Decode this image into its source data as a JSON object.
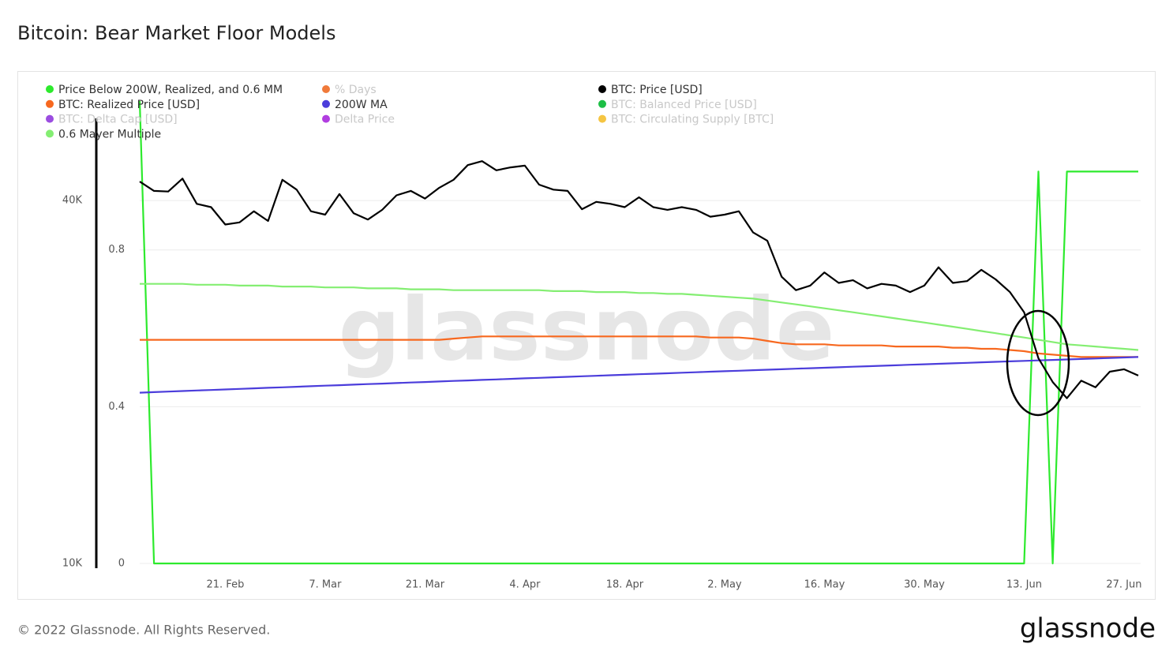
{
  "title": "Bitcoin: Bear Market Floor Models",
  "footer": "© 2022 Glassnode. All Rights Reserved.",
  "logo": "glassnode",
  "watermark": "glassnode",
  "chart_data": {
    "type": "line",
    "ylog": true,
    "ylim": [
      10000,
      58500
    ],
    "yticks": [
      {
        "value": 10000,
        "label": "10K"
      },
      {
        "value": 40000,
        "label": "40K"
      }
    ],
    "y2lim": [
      0,
      1.18
    ],
    "y2ticks": [
      0,
      0.4,
      0.8
    ],
    "grid": true,
    "categories": [
      null,
      null,
      null,
      null,
      null,
      null,
      "21. Feb",
      null,
      null,
      null,
      null,
      null,
      null,
      "7. Mar",
      null,
      null,
      null,
      null,
      null,
      null,
      "21. Mar",
      null,
      null,
      null,
      null,
      null,
      null,
      "4. Apr",
      null,
      null,
      null,
      null,
      null,
      null,
      "18. Apr",
      null,
      null,
      null,
      null,
      null,
      null,
      "2. May",
      null,
      null,
      null,
      null,
      null,
      null,
      "16. May",
      null,
      null,
      null,
      null,
      null,
      null,
      "30. May",
      null,
      null,
      null,
      null,
      null,
      null,
      "13. Jun",
      null,
      null,
      null,
      null,
      null,
      null,
      "27. Jun",
      null
    ],
    "series": [
      {
        "name": "Price Below 200W, Realized, and 0.6 MM",
        "color": "#2dea2d",
        "axis": "y2",
        "values": [
          1.18,
          0,
          0,
          0,
          0,
          0,
          0,
          0,
          0,
          0,
          0,
          0,
          0,
          0,
          0,
          0,
          0,
          0,
          0,
          0,
          0,
          0,
          0,
          0,
          0,
          0,
          0,
          0,
          0,
          0,
          0,
          0,
          0,
          0,
          0,
          0,
          0,
          0,
          0,
          0,
          0,
          0,
          0,
          0,
          0,
          0,
          0,
          0,
          0,
          0,
          0,
          0,
          0,
          0,
          0,
          0,
          0,
          0,
          0,
          0,
          0,
          0,
          0,
          1,
          0,
          1,
          1,
          1,
          1,
          1,
          1
        ]
      },
      {
        "name": "% Days",
        "color": "#f07a3a",
        "visible": false
      },
      {
        "name": "BTC: Price [USD]",
        "color": "#000000",
        "values": [
          43000,
          41500,
          41400,
          43500,
          39500,
          39000,
          36500,
          36800,
          38400,
          37000,
          43300,
          41700,
          38400,
          37900,
          41000,
          38100,
          37200,
          38600,
          40800,
          41500,
          40300,
          42000,
          43300,
          45800,
          46500,
          44900,
          45400,
          45700,
          42500,
          41700,
          41500,
          38700,
          39800,
          39500,
          39000,
          40500,
          39000,
          38600,
          39000,
          38600,
          37600,
          37900,
          38400,
          35400,
          34300,
          29900,
          28400,
          28900,
          30400,
          29200,
          29500,
          28600,
          29100,
          28900,
          28200,
          28900,
          31000,
          29200,
          29400,
          30700,
          29600,
          28200,
          26100,
          21900,
          20000,
          18800,
          20100,
          19600,
          20800,
          21000,
          20500
        ]
      },
      {
        "name": "BTC: Realized Price [USD]",
        "color": "#f7681f",
        "values": [
          23500,
          23500,
          23500,
          23500,
          23500,
          23500,
          23500,
          23500,
          23500,
          23500,
          23500,
          23500,
          23500,
          23500,
          23500,
          23500,
          23500,
          23500,
          23500,
          23500,
          23500,
          23500,
          23600,
          23700,
          23800,
          23800,
          23800,
          23800,
          23800,
          23800,
          23800,
          23800,
          23800,
          23800,
          23800,
          23800,
          23800,
          23800,
          23800,
          23800,
          23700,
          23700,
          23700,
          23600,
          23400,
          23200,
          23100,
          23100,
          23100,
          23000,
          23000,
          23000,
          23000,
          22900,
          22900,
          22900,
          22900,
          22800,
          22800,
          22700,
          22700,
          22600,
          22500,
          22300,
          22200,
          22100,
          22000,
          22000,
          22000,
          22000,
          22000
        ]
      },
      {
        "name": "200W MA",
        "color": "#4b3ddb",
        "values": [
          19200,
          19240,
          19280,
          19320,
          19360,
          19400,
          19440,
          19480,
          19520,
          19560,
          19600,
          19640,
          19680,
          19720,
          19760,
          19800,
          19840,
          19880,
          19920,
          19960,
          20000,
          20040,
          20080,
          20120,
          20160,
          20200,
          20240,
          20280,
          20320,
          20360,
          20400,
          20440,
          20480,
          20520,
          20560,
          20600,
          20640,
          20680,
          20720,
          20760,
          20800,
          20840,
          20880,
          20920,
          20960,
          21000,
          21040,
          21080,
          21120,
          21160,
          21200,
          21240,
          21280,
          21320,
          21360,
          21400,
          21440,
          21480,
          21520,
          21560,
          21600,
          21640,
          21680,
          21720,
          21760,
          21800,
          21840,
          21880,
          21920,
          21960,
          22000
        ]
      },
      {
        "name": "BTC: Balanced Price [USD]",
        "color": "#1dbf46",
        "visible": false
      },
      {
        "name": "BTC: Delta Cap [USD]",
        "color": "#9b4de0",
        "visible": false
      },
      {
        "name": "Delta Price",
        "color": "#b13ee0",
        "visible": false
      },
      {
        "name": "BTC: Circulating Supply [BTC]",
        "color": "#f5c542",
        "visible": false
      },
      {
        "name": "0.6 Mayer Multiple",
        "color": "#84ee72",
        "values": [
          29100,
          29100,
          29100,
          29100,
          29000,
          29000,
          29000,
          28900,
          28900,
          28900,
          28800,
          28800,
          28800,
          28700,
          28700,
          28700,
          28600,
          28600,
          28600,
          28500,
          28500,
          28500,
          28400,
          28400,
          28400,
          28400,
          28400,
          28400,
          28400,
          28300,
          28300,
          28300,
          28200,
          28200,
          28200,
          28100,
          28100,
          28000,
          28000,
          27900,
          27800,
          27700,
          27600,
          27500,
          27300,
          27100,
          26900,
          26700,
          26500,
          26300,
          26100,
          25900,
          25700,
          25500,
          25300,
          25100,
          24900,
          24700,
          24500,
          24300,
          24100,
          23900,
          23700,
          23500,
          23300,
          23100,
          23000,
          22900,
          22800,
          22700,
          22600
        ]
      }
    ]
  }
}
